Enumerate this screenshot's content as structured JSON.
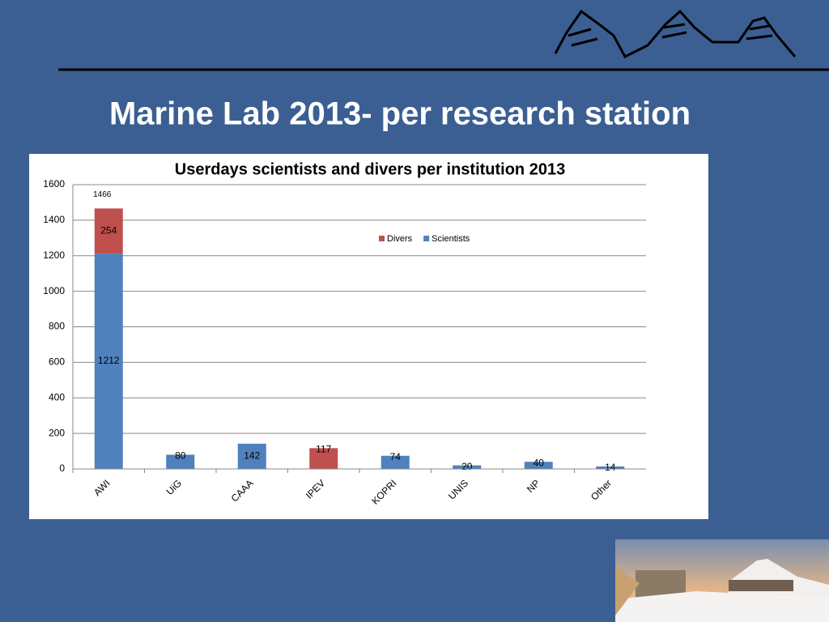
{
  "slide_title": "Marine Lab 2013- per research station",
  "chart_data": {
    "type": "stacked_bar",
    "title": "Userdays scientists and divers per institution 2013",
    "categories": [
      "AWI",
      "UiG",
      "CAAA",
      "IPEV",
      "KOPRI",
      "UNIS",
      "NP",
      "Other"
    ],
    "series": [
      {
        "name": "Scientists",
        "color": "#4f81bd",
        "values": [
          1212,
          80,
          142,
          null,
          74,
          20,
          40,
          14
        ]
      },
      {
        "name": "Divers",
        "color": "#c0504d",
        "values": [
          254,
          null,
          null,
          117,
          null,
          null,
          null,
          null
        ]
      }
    ],
    "annotations": [
      "1466"
    ],
    "ylim": [
      0,
      1600
    ],
    "yticks": [
      0,
      200,
      400,
      600,
      800,
      1000,
      1200,
      1400,
      1600
    ],
    "grid": true
  }
}
